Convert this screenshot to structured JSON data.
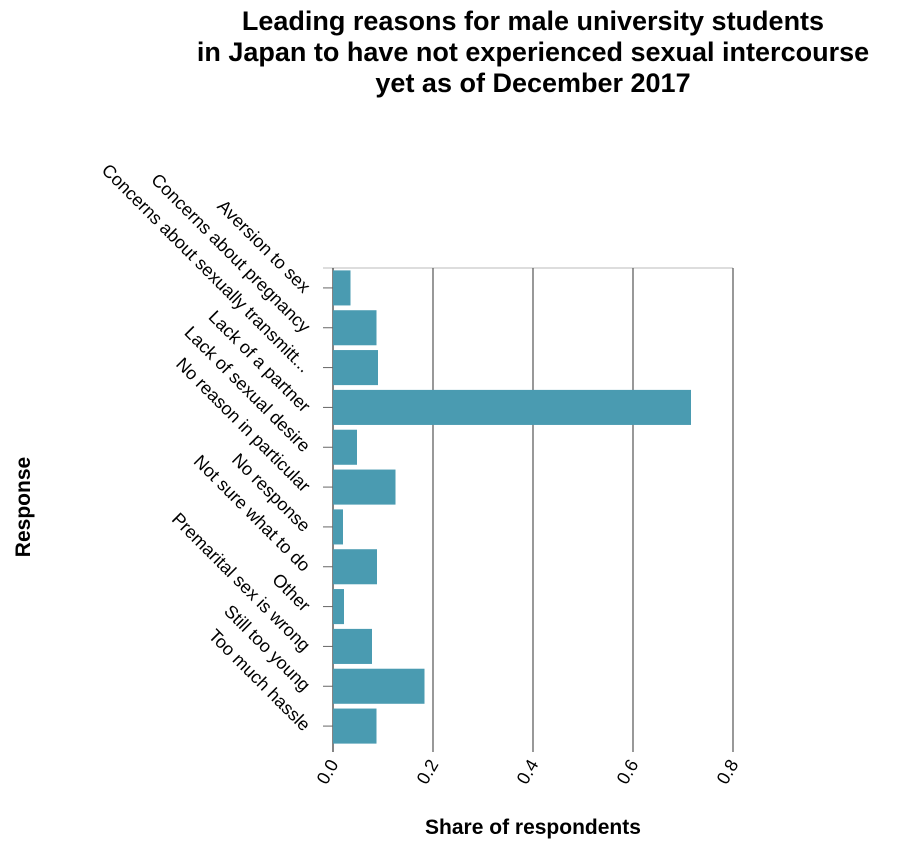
{
  "chart_data": {
    "type": "bar",
    "orientation": "horizontal",
    "title": "Leading reasons for male university students in Japan to have not experienced sexual intercourse yet as of December 2017",
    "title_lines": [
      "Leading reasons for male university students",
      "in Japan to have not experienced sexual intercourse",
      "yet as of December 2017"
    ],
    "xlabel": "Share of respondents",
    "ylabel": "Response",
    "xlim": [
      0,
      0.8
    ],
    "x_ticks": [
      0.0,
      0.2,
      0.4,
      0.6,
      0.8
    ],
    "x_tick_labels": [
      "0.0",
      "0.2",
      "0.4",
      "0.6",
      "0.8"
    ],
    "grid": "vertical",
    "bar_color": "#4a9bb1",
    "grid_color": "#555555",
    "categories": [
      "Aversion to sex",
      "Concerns about pregnancy",
      "Concerns about sexually transmitt...",
      "Lack of a partner",
      "Lack of sexual desire",
      "No reason in particular",
      "No response",
      "Not sure what to do",
      "Other",
      "Premarital sex is wrong",
      "Still too young",
      "Too much hassle"
    ],
    "values": [
      0.035,
      0.087,
      0.09,
      0.716,
      0.048,
      0.125,
      0.02,
      0.088,
      0.022,
      0.078,
      0.183,
      0.087
    ]
  }
}
